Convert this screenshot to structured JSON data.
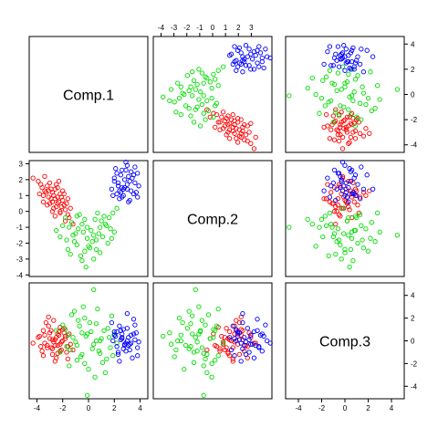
{
  "chart_data": {
    "type": "scatter",
    "layout": "pairs-matrix",
    "variables": [
      "Comp.1",
      "Comp.2",
      "Comp.3"
    ],
    "axes": {
      "Comp.1": {
        "range": [
          -4.6,
          4.6
        ],
        "ticks": [
          -4,
          -2,
          0,
          2,
          4
        ],
        "top_ticks": [
          -4,
          -3,
          -2,
          -1,
          0,
          1,
          2,
          3
        ]
      },
      "Comp.2": {
        "range": [
          -4.1,
          3.2
        ],
        "ticks": [
          -4,
          -3,
          -2,
          -1,
          0,
          1,
          2,
          3
        ]
      },
      "Comp.3": {
        "range": [
          -5.1,
          5.1
        ],
        "ticks": [
          -4,
          -2,
          0,
          2,
          4
        ]
      }
    },
    "groups": [
      {
        "color": "#ff0000",
        "points": [
          [
            -3.2,
            1.6,
            -0.4
          ],
          [
            -3.9,
            1.9,
            0.3
          ],
          [
            -2.4,
            0.9,
            0.6
          ],
          [
            -2.8,
            1.2,
            -1.2
          ],
          [
            -3.0,
            0.5,
            0.2
          ],
          [
            -2.1,
            0.3,
            -0.8
          ],
          [
            -3.5,
            1.0,
            0.9
          ],
          [
            -2.6,
            1.4,
            0.1
          ],
          [
            -1.8,
            0.1,
            0.4
          ],
          [
            -2.9,
            0.8,
            -0.6
          ],
          [
            -3.4,
            1.3,
            0.5
          ],
          [
            -2.2,
            1.1,
            -0.3
          ],
          [
            -1.9,
            0.4,
            1.1
          ],
          [
            -2.7,
            0.2,
            -0.1
          ],
          [
            -3.6,
            1.5,
            -0.9
          ],
          [
            -2.3,
            0.6,
            0.8
          ],
          [
            -1.6,
            -0.2,
            -0.5
          ],
          [
            -3.1,
            0.9,
            1.3
          ],
          [
            -2.5,
            1.7,
            -1.5
          ],
          [
            -2.0,
            0.7,
            0.0
          ],
          [
            -4.3,
            2.1,
            -0.2
          ],
          [
            -1.5,
            -0.4,
            0.6
          ],
          [
            -2.8,
            0.0,
            -0.7
          ],
          [
            -3.3,
            1.2,
            1.6
          ],
          [
            -2.4,
            1.5,
            -0.4
          ],
          [
            -1.7,
            0.5,
            -1.0
          ],
          [
            -3.0,
            1.8,
            0.7
          ],
          [
            -2.2,
            -0.1,
            1.2
          ],
          [
            -2.6,
            0.8,
            -1.8
          ],
          [
            -3.8,
            1.1,
            0.4
          ],
          [
            -1.4,
            0.2,
            -0.3
          ],
          [
            -2.9,
            1.4,
            0.9
          ],
          [
            -2.1,
            0.9,
            -0.1
          ],
          [
            -3.5,
            0.6,
            -1.3
          ],
          [
            -1.8,
            -0.6,
            0.2
          ],
          [
            -2.7,
            1.0,
            1.8
          ],
          [
            -3.2,
            0.4,
            -0.6
          ],
          [
            -2.3,
            1.9,
            0.5
          ],
          [
            -1.2,
            -0.8,
            -0.8
          ],
          [
            -2.5,
            0.3,
            0.3
          ],
          [
            -3.7,
            1.7,
            -0.5
          ],
          [
            -2.0,
            1.3,
            1.0
          ],
          [
            -1.6,
            0.8,
            -1.6
          ],
          [
            -2.8,
            0.6,
            0.1
          ],
          [
            -3.4,
            2.2,
            -0.2
          ],
          [
            -2.2,
            0.0,
            -0.9
          ],
          [
            -1.9,
            1.1,
            0.7
          ],
          [
            -2.6,
            -0.3,
            -0.4
          ],
          [
            -3.1,
            1.3,
            2.1
          ],
          [
            -2.4,
            0.5,
            -1.1
          ]
        ]
      },
      {
        "color": "#00dd00",
        "points": [
          [
            -1.2,
            -1.5,
            0.3
          ],
          [
            -0.5,
            -0.8,
            -1.2
          ],
          [
            0.2,
            -1.2,
            0.8
          ],
          [
            -0.9,
            -2.1,
            -0.4
          ],
          [
            0.6,
            -1.8,
            1.5
          ],
          [
            -1.5,
            -1.0,
            -2.2
          ],
          [
            1.0,
            -0.6,
            0.2
          ],
          [
            -0.3,
            -2.5,
            2.0
          ],
          [
            0.8,
            -1.4,
            -0.9
          ],
          [
            -1.8,
            -0.4,
            1.0
          ],
          [
            1.4,
            -0.9,
            -1.6
          ],
          [
            -0.1,
            -1.7,
            0.6
          ],
          [
            0.4,
            -3.0,
            -0.3
          ],
          [
            -1.1,
            -1.9,
            2.6
          ],
          [
            1.7,
            -1.1,
            -0.6
          ],
          [
            -0.7,
            -0.2,
            1.3
          ],
          [
            0.0,
            -2.2,
            -2.5
          ],
          [
            1.2,
            -0.3,
            0.9
          ],
          [
            -2.2,
            -1.6,
            -1.0
          ],
          [
            0.9,
            -2.6,
            0.0
          ],
          [
            -0.4,
            -1.3,
            3.0
          ],
          [
            1.9,
            -0.1,
            -1.3
          ],
          [
            -1.6,
            -2.4,
            0.5
          ],
          [
            0.5,
            -0.5,
            -3.2
          ],
          [
            -0.8,
            -1.1,
            1.8
          ],
          [
            2.2,
            0.2,
            -0.2
          ],
          [
            -0.2,
            -3.5,
            0.4
          ],
          [
            1.1,
            -1.6,
            -1.9
          ],
          [
            -1.3,
            -0.7,
            2.3
          ],
          [
            0.3,
            -1.9,
            -0.7
          ],
          [
            -2.5,
            -1.2,
            0.9
          ],
          [
            1.5,
            -2.0,
            1.1
          ],
          [
            -0.6,
            -2.8,
            -1.4
          ],
          [
            0.7,
            -0.1,
            2.8
          ],
          [
            -1.0,
            -1.4,
            -0.1
          ],
          [
            2.0,
            -1.3,
            0.6
          ],
          [
            -0.3,
            -0.5,
            -2.0
          ],
          [
            0.1,
            -2.3,
            1.6
          ],
          [
            -1.7,
            -1.8,
            -0.5
          ],
          [
            1.3,
            -0.8,
            -2.8
          ],
          [
            -0.5,
            -3.1,
            0.7
          ],
          [
            0.9,
            -1.0,
            -1.1
          ],
          [
            -2.0,
            -0.9,
            1.4
          ],
          [
            0.4,
            -1.5,
            4.5
          ],
          [
            -1.4,
            -2.7,
            -0.8
          ],
          [
            1.6,
            -0.4,
            0.3
          ],
          [
            -0.1,
            -1.0,
            -4.8
          ],
          [
            0.6,
            -2.4,
            0.0
          ],
          [
            -0.9,
            -0.3,
            -1.7
          ],
          [
            1.8,
            -1.7,
            2.2
          ]
        ]
      },
      {
        "color": "#0000ff",
        "points": [
          [
            2.6,
            1.5,
            0.3
          ],
          [
            3.1,
            2.2,
            -0.4
          ],
          [
            2.2,
            1.1,
            0.8
          ],
          [
            3.6,
            1.8,
            0.1
          ],
          [
            2.9,
            2.6,
            -0.9
          ],
          [
            2.4,
            0.8,
            1.3
          ],
          [
            3.3,
            1.3,
            -0.2
          ],
          [
            2.0,
            1.9,
            0.5
          ],
          [
            3.8,
            2.4,
            -0.6
          ],
          [
            2.7,
            1.0,
            1.0
          ],
          [
            3.0,
            2.9,
            0.0
          ],
          [
            2.3,
            1.6,
            -1.2
          ],
          [
            3.5,
            1.1,
            0.6
          ],
          [
            2.8,
            2.0,
            -0.3
          ],
          [
            1.8,
            1.4,
            1.6
          ],
          [
            3.2,
            0.7,
            -0.8
          ],
          [
            2.5,
            2.3,
            0.9
          ],
          [
            3.9,
            1.6,
            -0.1
          ],
          [
            2.1,
            2.7,
            0.4
          ],
          [
            3.4,
            2.1,
            -1.5
          ],
          [
            2.6,
            0.9,
            0.2
          ],
          [
            3.0,
            1.7,
            1.1
          ],
          [
            2.2,
            2.4,
            -0.5
          ],
          [
            3.7,
            1.2,
            0.7
          ],
          [
            2.9,
            3.1,
            -0.2
          ],
          [
            2.4,
            1.3,
            -1.8
          ],
          [
            3.3,
            2.5,
            0.5
          ],
          [
            1.9,
            1.0,
            0.0
          ],
          [
            3.6,
            2.8,
            1.4
          ],
          [
            2.7,
            1.4,
            -0.7
          ],
          [
            3.1,
            0.6,
            0.3
          ],
          [
            2.3,
            1.8,
            -1.0
          ],
          [
            3.5,
            2.3,
            1.9
          ],
          [
            2.8,
            1.5,
            -0.4
          ],
          [
            2.0,
            2.1,
            0.8
          ],
          [
            3.2,
            1.9,
            -0.3
          ],
          [
            2.5,
            1.2,
            0.1
          ],
          [
            3.8,
            0.9,
            -1.3
          ],
          [
            2.6,
            2.6,
            0.6
          ],
          [
            3.0,
            1.4,
            2.4
          ]
        ]
      }
    ]
  }
}
